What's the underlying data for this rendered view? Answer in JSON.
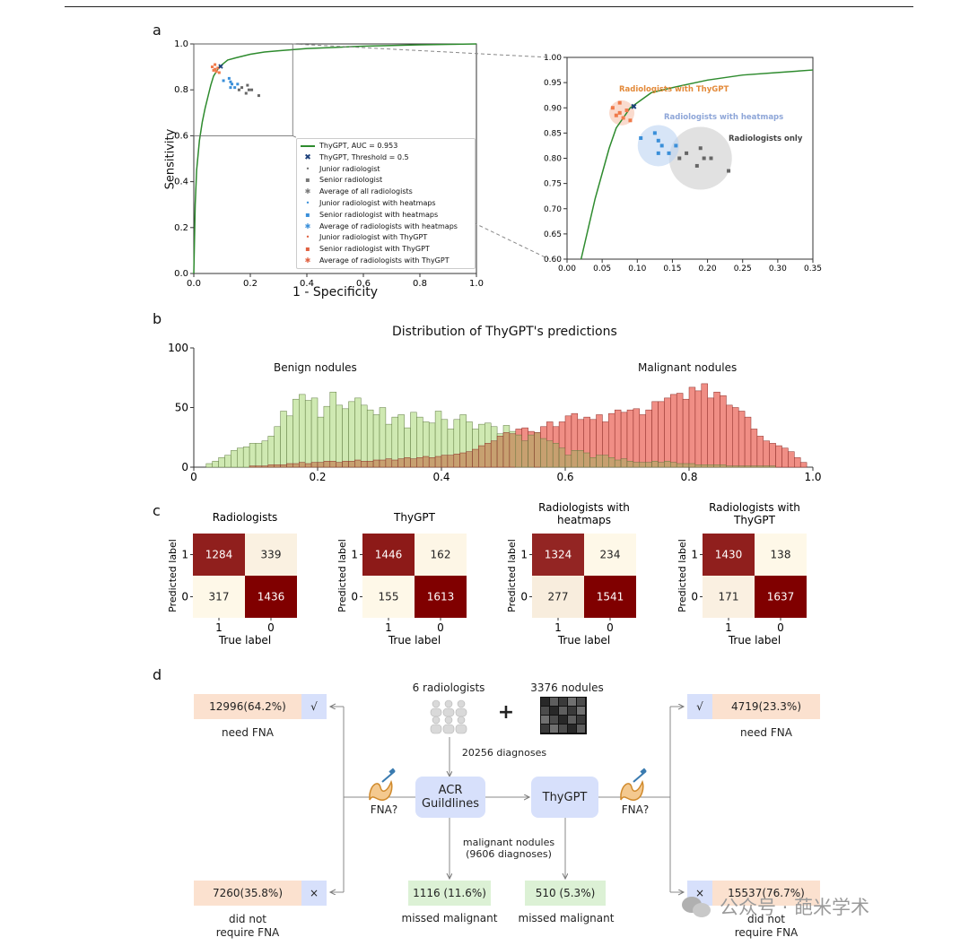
{
  "colors": {
    "roc": "#2e8b2e",
    "junior": "#c44",
    "benign": "#cfe9b2",
    "benign_edge": "#5f7a3f",
    "malignant": "#f08e85",
    "malignant_edge": "#8b2a24",
    "blueDot": "#3a8fd9",
    "grayDot": "#666666",
    "orangeDot": "#f07a4a",
    "accentBox": "#d7e0fb",
    "peachBox": "#fbe1cf",
    "greenBox": "#dcf1d5"
  },
  "panel_labels": {
    "a": "a",
    "b": "b",
    "c": "c",
    "d": "d"
  },
  "panel_a": {
    "ylabel": "Sensitivity",
    "xlabel": "1 - Specificity",
    "ticks": [
      "0.0",
      "0.2",
      "0.4",
      "0.6",
      "0.8",
      "1.0"
    ],
    "zoom_yticks": [
      "0.60",
      "0.65",
      "0.70",
      "0.75",
      "0.80",
      "0.85",
      "0.90",
      "0.95",
      "1.00"
    ],
    "zoom_xticks": [
      "0.00",
      "0.05",
      "0.10",
      "0.15",
      "0.20",
      "0.25",
      "0.30",
      "0.35"
    ],
    "zoom_annotations": [
      "Radiologists with ThyGPT",
      "Radiologists with heatmaps",
      "Radiologists only"
    ],
    "legend": [
      "ThyGPT, AUC = 0.953",
      "ThyGPT, Threshold = 0.5",
      "Junior radiologist",
      "Senior radiologist",
      "Average of all radiologists",
      "Junior radiologist with heatmaps",
      "Senior radiologist with heatmaps",
      "Average of radiologists with heatmaps",
      "Junior radiologist with ThyGPT",
      "Senior radiologist with ThyGPT",
      "Average of radiologists with ThyGPT"
    ]
  },
  "chart_data": [
    {
      "type": "line",
      "title": "",
      "xlabel": "1 - Specificity",
      "ylabel": "Sensitivity",
      "xlim": [
        0,
        1
      ],
      "ylim": [
        0,
        1
      ],
      "series": [
        {
          "name": "ThyGPT, AUC = 0.953",
          "x": [
            0,
            0.005,
            0.01,
            0.02,
            0.03,
            0.04,
            0.05,
            0.06,
            0.07,
            0.08,
            0.09,
            0.1,
            0.12,
            0.15,
            0.2,
            0.25,
            0.3,
            0.35,
            0.4,
            0.5,
            0.6,
            0.7,
            0.8,
            0.9,
            1.0
          ],
          "y": [
            0,
            0.3,
            0.45,
            0.58,
            0.66,
            0.72,
            0.77,
            0.82,
            0.86,
            0.88,
            0.9,
            0.91,
            0.93,
            0.94,
            0.955,
            0.965,
            0.97,
            0.975,
            0.98,
            0.985,
            0.99,
            0.993,
            0.996,
            0.998,
            1.0
          ]
        }
      ],
      "threshold_point": {
        "x": 0.095,
        "y": 0.902
      },
      "radiologists_only": {
        "x": [
          0.16,
          0.17,
          0.185,
          0.19,
          0.195,
          0.205,
          0.23
        ],
        "y": [
          0.8,
          0.81,
          0.785,
          0.82,
          0.8,
          0.8,
          0.775
        ],
        "average": {
          "x": 0.19,
          "y": 0.8
        }
      },
      "radiologists_with_heatmaps": {
        "x": [
          0.105,
          0.125,
          0.13,
          0.135,
          0.145,
          0.155,
          0.13
        ],
        "y": [
          0.84,
          0.85,
          0.835,
          0.825,
          0.81,
          0.825,
          0.81
        ],
        "average": {
          "x": 0.13,
          "y": 0.825
        }
      },
      "radiologists_with_thygpt": {
        "x": [
          0.065,
          0.07,
          0.075,
          0.08,
          0.085,
          0.09,
          0.075
        ],
        "y": [
          0.9,
          0.885,
          0.91,
          0.88,
          0.895,
          0.875,
          0.89
        ],
        "average": {
          "x": 0.078,
          "y": 0.89
        }
      },
      "zoom": {
        "xlim": [
          0,
          0.35
        ],
        "ylim": [
          0.6,
          1.0
        ]
      }
    },
    {
      "type": "bar",
      "title": "Distribution of ThyGPT's predictions",
      "xlabel": "",
      "ylabel": "",
      "xlim": [
        0,
        1
      ],
      "ylim": [
        0,
        100
      ],
      "xticks": [
        "0",
        "0.2",
        "0.4",
        "0.6",
        "0.8",
        "1.0"
      ],
      "yticks": [
        "0",
        "50",
        "100"
      ],
      "annotations": [
        "Benign nodules",
        "Malignant nodules"
      ],
      "bin_start": 0.02,
      "bin_width": 0.01,
      "series": [
        {
          "name": "Benign nodules",
          "values": [
            3,
            5,
            8,
            10,
            14,
            16,
            17,
            20,
            20,
            22,
            26,
            34,
            47,
            43,
            57,
            61,
            56,
            58,
            42,
            51,
            63,
            52,
            49,
            55,
            58,
            52,
            48,
            44,
            50,
            36,
            42,
            44,
            33,
            46,
            42,
            38,
            37,
            47,
            40,
            32,
            40,
            44,
            38,
            32,
            36,
            37,
            34,
            28,
            35,
            30,
            27,
            22,
            27,
            29,
            24,
            22,
            20,
            16,
            10,
            14,
            14,
            12,
            8,
            10,
            10,
            8,
            6,
            7,
            5,
            4,
            4,
            4,
            5,
            4,
            5,
            4,
            3,
            3,
            3,
            2,
            2,
            2,
            2,
            2,
            1,
            1,
            1,
            1,
            1,
            1,
            1,
            1,
            0,
            0,
            0
          ]
        },
        {
          "name": "Malignant nodules",
          "values": [
            0,
            0,
            0,
            0,
            0,
            0,
            0,
            1,
            1,
            1,
            2,
            2,
            2,
            3,
            3,
            4,
            3,
            4,
            4,
            5,
            5,
            4,
            5,
            5,
            6,
            5,
            5,
            6,
            6,
            7,
            6,
            7,
            8,
            7,
            8,
            9,
            8,
            9,
            10,
            10,
            11,
            12,
            13,
            15,
            18,
            20,
            22,
            26,
            29,
            28,
            32,
            33,
            30,
            29,
            34,
            38,
            34,
            38,
            43,
            45,
            40,
            42,
            40,
            44,
            38,
            45,
            48,
            46,
            48,
            49,
            44,
            48,
            55,
            55,
            58,
            61,
            62,
            57,
            67,
            64,
            70,
            58,
            63,
            60,
            52,
            50,
            47,
            42,
            32,
            26,
            22,
            20,
            18,
            16,
            13,
            8,
            4
          ]
        }
      ]
    },
    {
      "type": "heatmap",
      "title": "Radiologists",
      "xlabel": "True label",
      "ylabel": "Predicted label",
      "x_categories": [
        "1",
        "0"
      ],
      "y_categories": [
        "1",
        "0"
      ],
      "values": [
        [
          1284,
          339
        ],
        [
          317,
          1436
        ]
      ]
    },
    {
      "type": "heatmap",
      "title": "ThyGPT",
      "xlabel": "True label",
      "ylabel": "Predicted label",
      "x_categories": [
        "1",
        "0"
      ],
      "y_categories": [
        "1",
        "0"
      ],
      "values": [
        [
          1446,
          162
        ],
        [
          155,
          1613
        ]
      ]
    },
    {
      "type": "heatmap",
      "title": "Radiologists with heatmaps",
      "xlabel": "True label",
      "ylabel": "Predicted label",
      "x_categories": [
        "1",
        "0"
      ],
      "y_categories": [
        "1",
        "0"
      ],
      "values": [
        [
          1324,
          234
        ],
        [
          277,
          1541
        ]
      ]
    },
    {
      "type": "heatmap",
      "title": "Radiologists with ThyGPT",
      "xlabel": "True label",
      "ylabel": "Predicted label",
      "x_categories": [
        "1",
        "0"
      ],
      "y_categories": [
        "1",
        "0"
      ],
      "values": [
        [
          1430,
          138
        ],
        [
          171,
          1637
        ]
      ]
    }
  ],
  "panel_c": {
    "titles": [
      [
        "Radiologists"
      ],
      [
        "ThyGPT"
      ],
      [
        "Radiologists with",
        "heatmaps"
      ],
      [
        "Radiologists with",
        "ThyGPT"
      ]
    ],
    "ylabel": "Predicted label",
    "xlabel": "True label"
  },
  "panel_d": {
    "radiologists": "6 radiologists",
    "plus": "+",
    "nodules": "3376 nodules",
    "diagnoses": "20256 diagnoses",
    "acr": [
      "ACR",
      "Guildlines"
    ],
    "thygpt": "ThyGPT",
    "fna_q": "FNA?",
    "malignant": [
      "malignant nodules",
      "(9606 diagnoses)"
    ],
    "left_need": "12996(64.2%)",
    "left_need_mark": "√",
    "need_fna": "need FNA",
    "left_not": "7260(35.8%)",
    "left_not_mark": "×",
    "not_require": [
      "did not",
      "require FNA"
    ],
    "right_need": "4719(23.3%)",
    "right_need_mark": "√",
    "right_not": "15537(76.7%)",
    "right_not_mark": "×",
    "missed_acr": "1116 (11.6%)",
    "missed_thy": "510 (5.3%)",
    "missed_label": "missed malignant"
  },
  "watermark": "公众号 · 葩米学术"
}
